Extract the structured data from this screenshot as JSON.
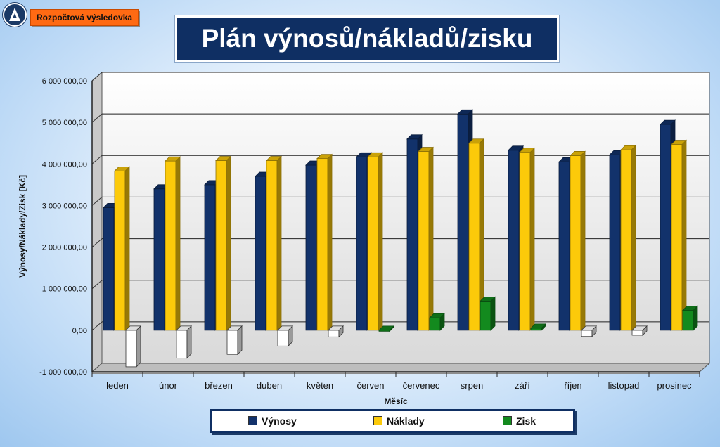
{
  "header": {
    "tag_label": "Rozpočtová výsledovka",
    "title": "Plán výnosů/nákladů/zisku"
  },
  "legend": {
    "items": [
      {
        "label": "Výnosy",
        "color": "#12326b"
      },
      {
        "label": "Náklady",
        "color": "#fcca0a"
      },
      {
        "label": "Zisk",
        "color": "#138a1e"
      }
    ]
  },
  "chart_data": {
    "type": "bar",
    "title": "Plán výnosů/nákladů/zisku",
    "xlabel": "Měsíc",
    "ylabel": "Výnosy/Náklady/Zisk [Kč]",
    "ylim": [
      -1000000,
      6000000
    ],
    "yticks": [
      -1000000,
      0,
      1000000,
      2000000,
      3000000,
      4000000,
      5000000,
      6000000
    ],
    "ytick_labels": [
      "-1 000 000,00",
      "0,00",
      "1 000 000,00",
      "2 000 000,00",
      "3 000 000,00",
      "4 000 000,00",
      "5 000 000,00",
      "6 000 000,00"
    ],
    "grid": true,
    "legend_position": "bottom",
    "categories": [
      "leden",
      "únor",
      "březen",
      "duben",
      "květen",
      "červen",
      "červenec",
      "srpen",
      "září",
      "říjen",
      "listopad",
      "prosinec"
    ],
    "series": [
      {
        "name": "Výnosy",
        "color": "#12326b",
        "values": [
          2950000,
          3400000,
          3500000,
          3700000,
          3970000,
          4170000,
          4600000,
          5200000,
          4330000,
          4050000,
          4220000,
          4950000
        ]
      },
      {
        "name": "Náklady",
        "color": "#fcca0a",
        "values": [
          3830000,
          4070000,
          4080000,
          4080000,
          4130000,
          4170000,
          4300000,
          4500000,
          4280000,
          4200000,
          4340000,
          4470000
        ]
      },
      {
        "name": "Zisk",
        "color": "#138a1e",
        "negative_color": "#ffffff",
        "values": [
          -880000,
          -670000,
          -580000,
          -380000,
          -160000,
          0,
          300000,
          700000,
          50000,
          -150000,
          -120000,
          480000
        ]
      }
    ]
  }
}
